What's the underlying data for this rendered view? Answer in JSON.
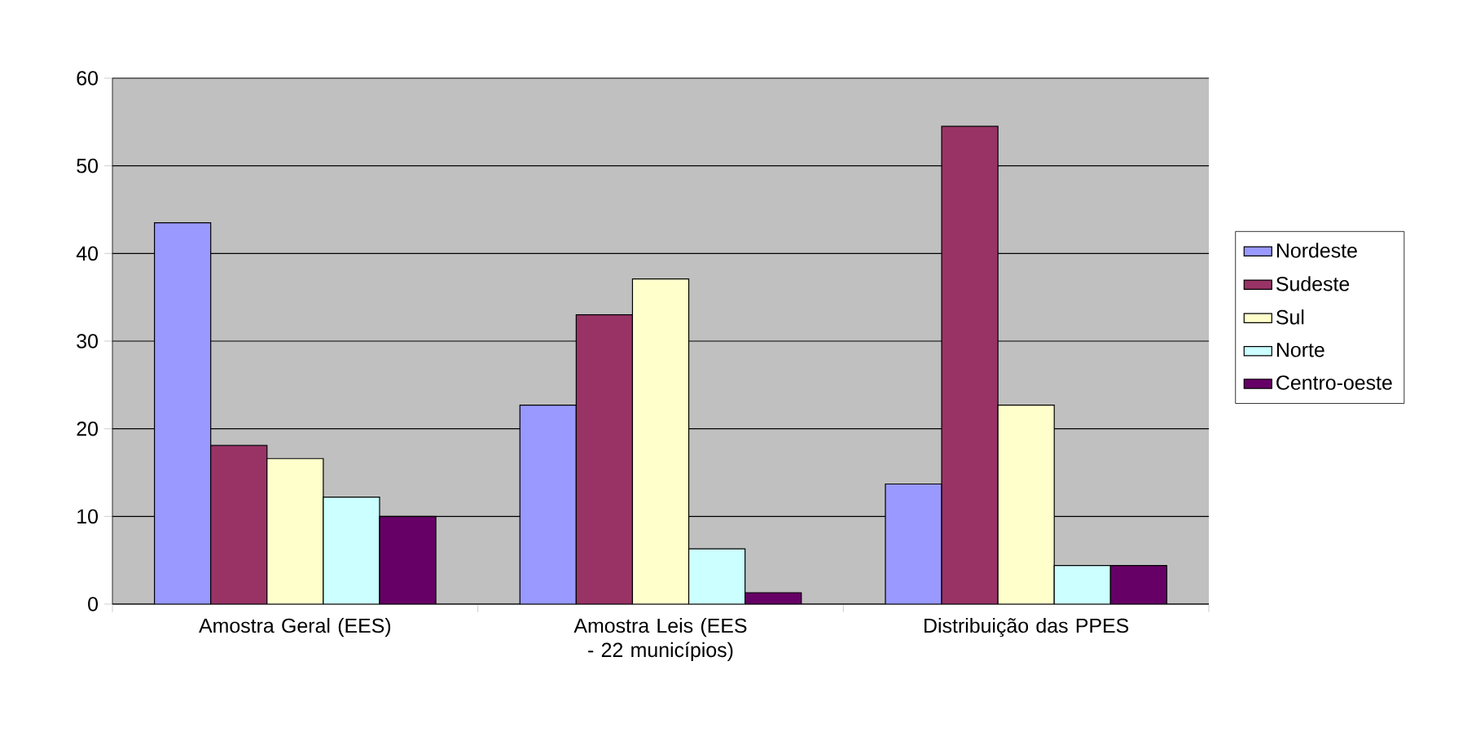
{
  "chart_data": {
    "type": "bar",
    "categories": [
      "Amostra Geral (EES)",
      "Amostra Leis (EES - 22 municípios)",
      "Distribuição das PPES"
    ],
    "series": [
      {
        "name": "Nordeste",
        "color": "#9999ff",
        "values": [
          43.5,
          22.7,
          13.7
        ]
      },
      {
        "name": "Sudeste",
        "color": "#993366",
        "values": [
          18.1,
          33,
          54.5
        ]
      },
      {
        "name": "Sul",
        "color": "#ffffcc",
        "values": [
          16.6,
          37.1,
          22.7
        ]
      },
      {
        "name": "Norte",
        "color": "#ccffff",
        "values": [
          12.2,
          6.3,
          4.4
        ]
      },
      {
        "name": "Centro-oeste",
        "color": "#660066",
        "values": [
          10,
          1.3,
          4.4
        ]
      }
    ],
    "ylim": [
      0,
      60
    ],
    "yticks": [
      0,
      10,
      20,
      30,
      40,
      50,
      60
    ],
    "grid": "y",
    "legend": "right"
  }
}
